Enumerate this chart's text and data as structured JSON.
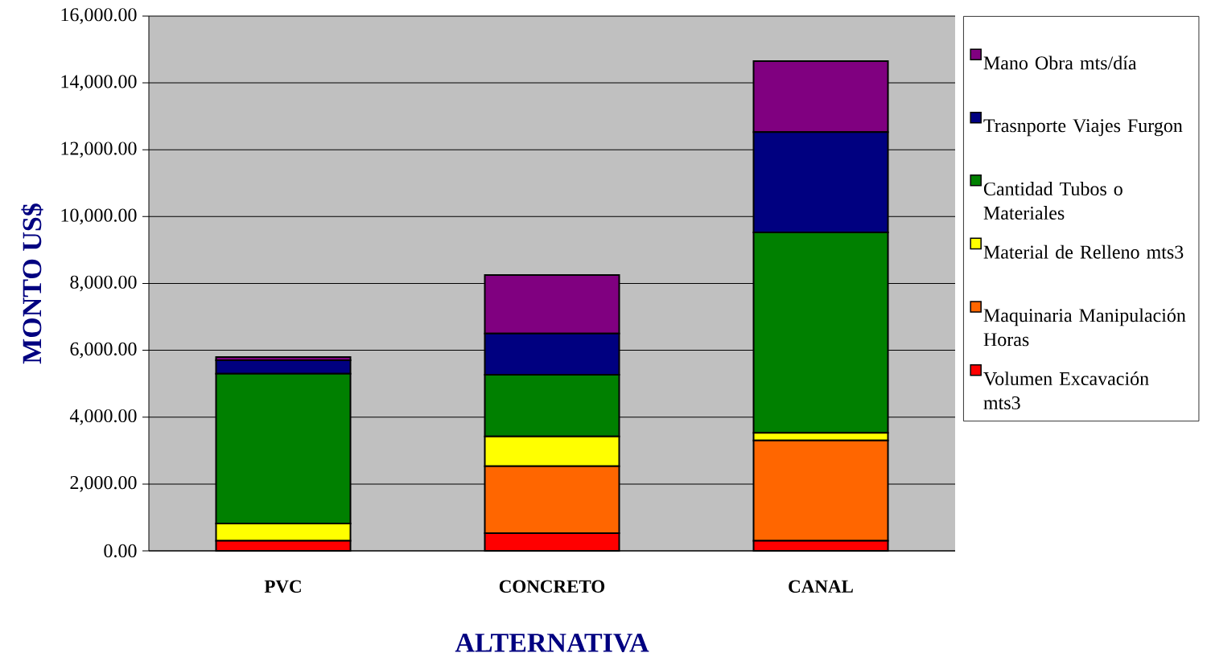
{
  "chart_data": {
    "type": "bar",
    "stacked": true,
    "xlabel": "ALTERNATIVA",
    "ylabel": "MONTO US$",
    "categories": [
      "PVC",
      "CONCRETO",
      "CANAL"
    ],
    "series": [
      {
        "name": "Volumen Excavación mts3",
        "color": "#ff0000",
        "values": [
          300,
          530,
          300
        ]
      },
      {
        "name": "Maquinaria Manipulación Horas",
        "color": "#ff6600",
        "values": [
          0,
          2000,
          3000
        ]
      },
      {
        "name": "Material de Relleno mts3",
        "color": "#ffff00",
        "values": [
          520,
          890,
          230
        ]
      },
      {
        "name": "Cantidad Tubos o Materiales",
        "color": "#008000",
        "values": [
          4480,
          1850,
          6000
        ]
      },
      {
        "name": "Trasnporte Viajes Furgon",
        "color": "#000080",
        "values": [
          400,
          1230,
          3000
        ]
      },
      {
        "name": "Mano Obra mts/día",
        "color": "#800080",
        "values": [
          100,
          1750,
          2120
        ]
      }
    ],
    "ylim": [
      0,
      16000
    ],
    "yticks": [
      {
        "value": 0,
        "label": "0.00"
      },
      {
        "value": 2000,
        "label": "2,000.00"
      },
      {
        "value": 4000,
        "label": "4,000.00"
      },
      {
        "value": 6000,
        "label": "6,000.00"
      },
      {
        "value": 8000,
        "label": "8,000.00"
      },
      {
        "value": 10000,
        "label": "10,000.00"
      },
      {
        "value": 12000,
        "label": "12,000.00"
      },
      {
        "value": 14000,
        "label": "14,000.00"
      },
      {
        "value": 16000,
        "label": "16,000.00"
      }
    ],
    "grid": "y",
    "legend": "right"
  }
}
